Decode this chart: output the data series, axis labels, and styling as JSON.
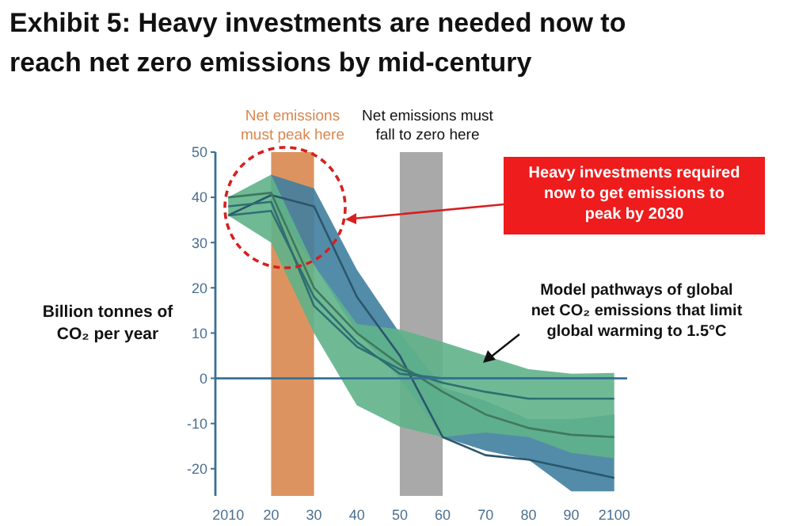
{
  "chart_data": {
    "type": "line",
    "title": "Exhibit 5: Heavy investments are needed now to reach net zero emissions by mid-century",
    "ylabel": "Billion tonnes of CO₂ per year",
    "x": [
      2010,
      2020,
      2030,
      2040,
      2050,
      2060,
      2070,
      2080,
      2090,
      2100
    ],
    "xlim": [
      2007,
      2103
    ],
    "xticks": [
      {
        "value": 2010,
        "label": "2010"
      },
      {
        "value": 2020,
        "label": "20"
      },
      {
        "value": 2030,
        "label": "30"
      },
      {
        "value": 2040,
        "label": "40"
      },
      {
        "value": 2050,
        "label": "50"
      },
      {
        "value": 2060,
        "label": "60"
      },
      {
        "value": 2070,
        "label": "70"
      },
      {
        "value": 2080,
        "label": "80"
      },
      {
        "value": 2090,
        "label": "90"
      },
      {
        "value": 2100,
        "label": "2100"
      }
    ],
    "ylim": [
      -26,
      50
    ],
    "yticks": [
      50,
      40,
      30,
      20,
      10,
      0,
      -10,
      -20
    ],
    "grid": false,
    "marker": "none",
    "line_style": "solid",
    "series": [
      {
        "color": "#2b566c",
        "values": [
          36,
          40.5,
          38,
          18,
          5,
          -13,
          -17,
          -18,
          -20,
          -22
        ],
        "lower": [
          null,
          38,
          25,
          10,
          0,
          -13,
          -16,
          -18,
          -25,
          -25
        ],
        "upper": [
          null,
          45,
          42,
          24,
          10,
          -2,
          -5,
          -9,
          -9,
          -8
        ]
      },
      {
        "color": "#40795d",
        "values": [
          40,
          41,
          20,
          10,
          3,
          -3,
          -8,
          -11,
          -12.5,
          -13
        ],
        "lower": [
          36,
          30,
          10,
          -6,
          -10.7,
          -13,
          -12,
          -13,
          -16.5,
          -17.7
        ],
        "upper": [
          40,
          45,
          25,
          12,
          10.8,
          8,
          5,
          2,
          1,
          1.2
        ]
      },
      {
        "color": "#2f6f72",
        "values": [
          38,
          39,
          16,
          7,
          2,
          -1,
          -3,
          -4.5,
          -4.5,
          -4.5
        ]
      },
      {
        "color": "#2f6f72",
        "values": [
          36,
          37,
          18,
          8,
          1,
          0,
          0,
          0,
          0,
          0
        ]
      }
    ],
    "bands": [
      {
        "axis": "x",
        "from": 2020,
        "to": 2030,
        "label": "Net emissions\nmust peak here",
        "color": "#d9874f"
      },
      {
        "axis": "x",
        "from": 2050,
        "to": 2060,
        "label": "Net emissions must\nfall to zero here",
        "color": "#a0a0a0"
      }
    ],
    "ref_lines": [
      {
        "axis": "y",
        "value": 0,
        "color": "#3a6f96"
      }
    ],
    "annotations": [
      "Heavy investments required\nnow to get emissions to\npeak by 2030",
      "Model pathways of global\nnet CO₂ emissions that limit\nglobal warming to 1.5°C"
    ]
  }
}
